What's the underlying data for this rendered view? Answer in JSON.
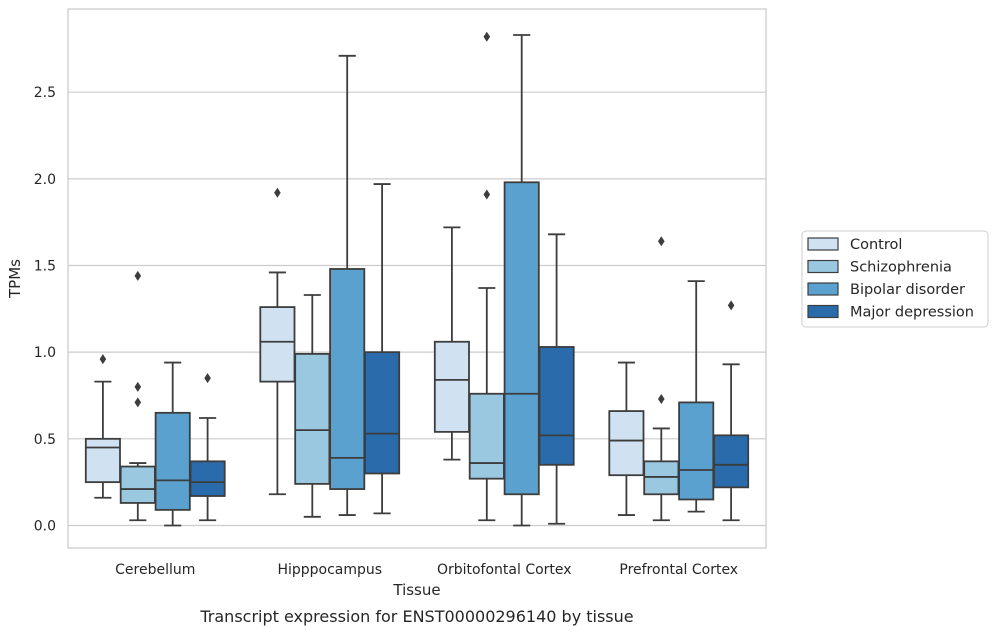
{
  "caption": "Transcript expression for ENST00000296140 by tissue",
  "chart_data": {
    "type": "box",
    "xlabel": "Tissue",
    "ylabel": "TPMs",
    "ylim": [
      -0.13,
      2.98
    ],
    "yticks": [
      0.0,
      0.5,
      1.0,
      1.5,
      2.0,
      2.5
    ],
    "ytick_labels": [
      "0.0",
      "0.5",
      "1.0",
      "1.5",
      "2.0",
      "2.5"
    ],
    "grid": "horizontal",
    "legend_position": "right",
    "categories": [
      "Cerebellum",
      "Hipppocampus",
      "Orbitofontal Cortex",
      "Prefrontal Cortex"
    ],
    "series": [
      {
        "name": "Control",
        "color": "#d0e2f2",
        "boxes": [
          {
            "whislo": 0.16,
            "q1": 0.25,
            "med": 0.45,
            "q3": 0.5,
            "whishi": 0.83,
            "fliers": [
              0.96
            ]
          },
          {
            "whislo": 0.18,
            "q1": 0.83,
            "med": 1.06,
            "q3": 1.26,
            "whishi": 1.46,
            "fliers": [
              1.92
            ]
          },
          {
            "whislo": 0.38,
            "q1": 0.54,
            "med": 0.84,
            "q3": 1.06,
            "whishi": 1.72,
            "fliers": []
          },
          {
            "whislo": 0.06,
            "q1": 0.29,
            "med": 0.49,
            "q3": 0.66,
            "whishi": 0.94,
            "fliers": []
          }
        ]
      },
      {
        "name": "Schizophrenia",
        "color": "#9ac8e0",
        "boxes": [
          {
            "whislo": 0.03,
            "q1": 0.13,
            "med": 0.21,
            "q3": 0.34,
            "whishi": 0.36,
            "fliers": [
              0.71,
              0.8,
              1.44
            ]
          },
          {
            "whislo": 0.05,
            "q1": 0.24,
            "med": 0.55,
            "q3": 0.99,
            "whishi": 1.33,
            "fliers": []
          },
          {
            "whislo": 0.03,
            "q1": 0.27,
            "med": 0.36,
            "q3": 0.76,
            "whishi": 1.37,
            "fliers": [
              1.91,
              2.82
            ]
          },
          {
            "whislo": 0.03,
            "q1": 0.18,
            "med": 0.28,
            "q3": 0.37,
            "whishi": 0.56,
            "fliers": [
              0.73,
              1.64
            ]
          }
        ]
      },
      {
        "name": "Bipolar disorder",
        "color": "#5ba1cf",
        "boxes": [
          {
            "whislo": 0.0,
            "q1": 0.09,
            "med": 0.26,
            "q3": 0.65,
            "whishi": 0.94,
            "fliers": []
          },
          {
            "whislo": 0.06,
            "q1": 0.21,
            "med": 0.39,
            "q3": 1.48,
            "whishi": 2.71,
            "fliers": []
          },
          {
            "whislo": 0.0,
            "q1": 0.18,
            "med": 0.76,
            "q3": 1.98,
            "whishi": 2.83,
            "fliers": []
          },
          {
            "whislo": 0.08,
            "q1": 0.15,
            "med": 0.32,
            "q3": 0.71,
            "whishi": 1.41,
            "fliers": []
          }
        ]
      },
      {
        "name": "Major depression",
        "color": "#2a6bab",
        "boxes": [
          {
            "whislo": 0.03,
            "q1": 0.17,
            "med": 0.25,
            "q3": 0.37,
            "whishi": 0.62,
            "fliers": [
              0.85
            ]
          },
          {
            "whislo": 0.07,
            "q1": 0.3,
            "med": 0.53,
            "q3": 1.0,
            "whishi": 1.97,
            "fliers": []
          },
          {
            "whislo": 0.01,
            "q1": 0.35,
            "med": 0.52,
            "q3": 1.03,
            "whishi": 1.68,
            "fliers": []
          },
          {
            "whislo": 0.03,
            "q1": 0.22,
            "med": 0.35,
            "q3": 0.52,
            "whishi": 0.93,
            "fliers": [
              1.27
            ]
          }
        ]
      }
    ]
  }
}
